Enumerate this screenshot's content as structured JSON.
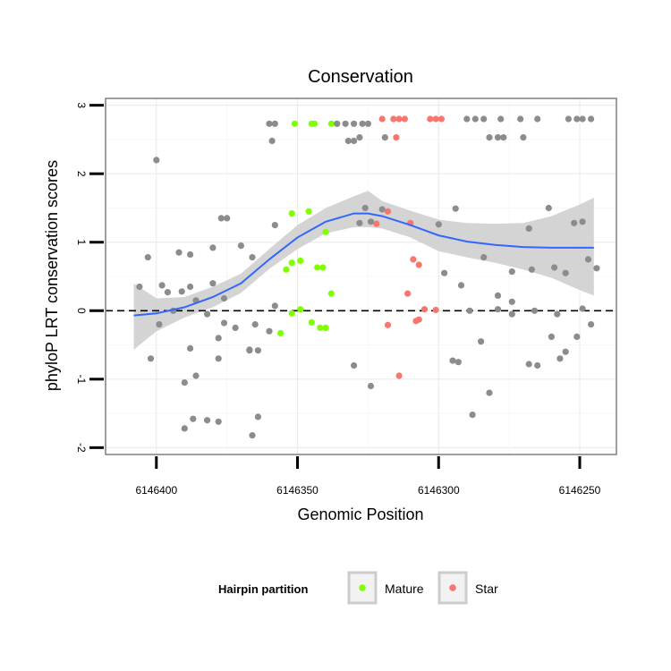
{
  "chart_data": {
    "type": "scatter",
    "title": "Conservation",
    "xlabel": "Genomic Position",
    "ylabel": "phyloP LRT conservation scores",
    "x_reversed": true,
    "xlim": [
      6146418,
      6146237
    ],
    "ylim": [
      -2.1,
      3.1
    ],
    "x_ticks": [
      6146400,
      6146350,
      6146300,
      6146250
    ],
    "x_tick_labels": [
      "6146400",
      "6146350",
      "6146300",
      "6146250"
    ],
    "y_ticks": [
      -2,
      -1,
      0,
      1,
      2,
      3
    ],
    "y_tick_labels": [
      "-2",
      "-1",
      "0",
      "1",
      "2",
      "3"
    ],
    "grid": true,
    "reference_line": {
      "y": 0,
      "style": "dashed",
      "color": "#000000"
    },
    "legend": {
      "title": "Hairpin partition",
      "position": "bottom",
      "entries": [
        {
          "label": "Mature",
          "color": "#7FFF00"
        },
        {
          "label": "Star",
          "color": "#F8766D"
        }
      ]
    },
    "other_color": "#8c8c8c",
    "smooth": {
      "color": "#3366FF",
      "band_color": "#cccccc",
      "x": [
        6146408,
        6146400,
        6146390,
        6146380,
        6146370,
        6146360,
        6146350,
        6146340,
        6146330,
        6146325,
        6146320,
        6146310,
        6146300,
        6146290,
        6146280,
        6146270,
        6146260,
        6146250,
        6146245
      ],
      "y": [
        -0.07,
        -0.04,
        0.05,
        0.2,
        0.4,
        0.75,
        1.07,
        1.3,
        1.42,
        1.42,
        1.38,
        1.25,
        1.1,
        1.01,
        0.96,
        0.93,
        0.92,
        0.92,
        0.92
      ],
      "lower": [
        -0.57,
        -0.3,
        -0.1,
        0.05,
        0.26,
        0.61,
        0.9,
        1.13,
        1.22,
        1.22,
        1.2,
        1.07,
        0.87,
        0.78,
        0.7,
        0.6,
        0.48,
        0.3,
        0.22
      ],
      "upper": [
        0.4,
        0.18,
        0.2,
        0.35,
        0.54,
        0.9,
        1.25,
        1.5,
        1.67,
        1.75,
        1.6,
        1.46,
        1.33,
        1.28,
        1.27,
        1.28,
        1.38,
        1.55,
        1.65
      ]
    },
    "series": [
      {
        "name": "Mature",
        "points": [
          [
            6146351,
            2.73
          ],
          [
            6146345,
            2.73
          ],
          [
            6146344,
            2.73
          ],
          [
            6146338,
            2.73
          ],
          [
            6146336,
            2.73
          ],
          [
            6146352,
            1.42
          ],
          [
            6146346,
            1.45
          ],
          [
            6146340,
            1.15
          ],
          [
            6146354,
            0.6
          ],
          [
            6146352,
            0.7
          ],
          [
            6146349,
            0.73
          ],
          [
            6146343,
            0.63
          ],
          [
            6146341,
            0.63
          ],
          [
            6146349,
            0.02
          ],
          [
            6146338,
            0.25
          ],
          [
            6146352,
            -0.04
          ],
          [
            6146345,
            -0.17
          ],
          [
            6146342,
            -0.25
          ],
          [
            6146340,
            -0.25
          ],
          [
            6146356,
            -0.33
          ]
        ]
      },
      {
        "name": "Star",
        "points": [
          [
            6146320,
            2.8
          ],
          [
            6146316,
            2.8
          ],
          [
            6146314,
            2.8
          ],
          [
            6146312,
            2.8
          ],
          [
            6146303,
            2.8
          ],
          [
            6146301,
            2.8
          ],
          [
            6146299,
            2.8
          ],
          [
            6146315,
            2.53
          ],
          [
            6146322,
            1.27
          ],
          [
            6146318,
            1.45
          ],
          [
            6146310,
            1.28
          ],
          [
            6146309,
            0.75
          ],
          [
            6146307,
            0.67
          ],
          [
            6146311,
            0.25
          ],
          [
            6146305,
            0.02
          ],
          [
            6146301,
            0.01
          ],
          [
            6146308,
            -0.15
          ],
          [
            6146307,
            -0.13
          ],
          [
            6146318,
            -0.21
          ],
          [
            6146314,
            -0.95
          ]
        ]
      },
      {
        "name": "Other",
        "points": [
          [
            6146360,
            2.73
          ],
          [
            6146358,
            2.73
          ],
          [
            6146336,
            2.73
          ],
          [
            6146333,
            2.73
          ],
          [
            6146330,
            2.73
          ],
          [
            6146327,
            2.73
          ],
          [
            6146325,
            2.73
          ],
          [
            6146359,
            2.48
          ],
          [
            6146332,
            2.48
          ],
          [
            6146330,
            2.48
          ],
          [
            6146328,
            2.53
          ],
          [
            6146319,
            2.53
          ],
          [
            6146400,
            2.2
          ],
          [
            6146377,
            1.35
          ],
          [
            6146375,
            1.35
          ],
          [
            6146370,
            0.95
          ],
          [
            6146380,
            0.92
          ],
          [
            6146358,
            1.25
          ],
          [
            6146328,
            1.28
          ],
          [
            6146324,
            1.3
          ],
          [
            6146326,
            1.5
          ],
          [
            6146320,
            1.48
          ],
          [
            6146300,
            1.26
          ],
          [
            6146294,
            1.49
          ],
          [
            6146392,
            0.85
          ],
          [
            6146388,
            0.82
          ],
          [
            6146403,
            0.78
          ],
          [
            6146366,
            0.78
          ],
          [
            6146380,
            0.4
          ],
          [
            6146388,
            0.35
          ],
          [
            6146396,
            0.27
          ],
          [
            6146391,
            0.28
          ],
          [
            6146406,
            0.35
          ],
          [
            6146398,
            0.37
          ],
          [
            6146386,
            0.15
          ],
          [
            6146376,
            0.18
          ],
          [
            6146358,
            0.07
          ],
          [
            6146394,
            0.0
          ],
          [
            6146382,
            -0.05
          ],
          [
            6146399,
            -0.2
          ],
          [
            6146376,
            -0.18
          ],
          [
            6146372,
            -0.25
          ],
          [
            6146365,
            -0.2
          ],
          [
            6146360,
            -0.3
          ],
          [
            6146378,
            -0.4
          ],
          [
            6146388,
            -0.55
          ],
          [
            6146378,
            -0.7
          ],
          [
            6146367,
            -0.57
          ],
          [
            6146367,
            -0.58
          ],
          [
            6146364,
            -0.58
          ],
          [
            6146402,
            -0.7
          ],
          [
            6146386,
            -0.95
          ],
          [
            6146390,
            -1.05
          ],
          [
            6146382,
            -1.6
          ],
          [
            6146378,
            -1.62
          ],
          [
            6146387,
            -1.58
          ],
          [
            6146364,
            -1.55
          ],
          [
            6146390,
            -1.72
          ],
          [
            6146366,
            -1.82
          ],
          [
            6146330,
            -0.8
          ],
          [
            6146324,
            -1.1
          ],
          [
            6146298,
            0.55
          ],
          [
            6146292,
            0.37
          ],
          [
            6146289,
            0.0
          ],
          [
            6146295,
            -0.73
          ],
          [
            6146293,
            -0.75
          ],
          [
            6146285,
            -0.45
          ],
          [
            6146288,
            -1.52
          ],
          [
            6146282,
            -1.2
          ],
          [
            6146282,
            2.53
          ],
          [
            6146279,
            2.53
          ],
          [
            6146277,
            2.53
          ],
          [
            6146270,
            2.53
          ],
          [
            6146290,
            2.8
          ],
          [
            6146287,
            2.8
          ],
          [
            6146284,
            2.8
          ],
          [
            6146278,
            2.8
          ],
          [
            6146271,
            2.8
          ],
          [
            6146265,
            2.8
          ],
          [
            6146254,
            2.8
          ],
          [
            6146251,
            2.8
          ],
          [
            6146249,
            2.8
          ],
          [
            6146246,
            2.8
          ],
          [
            6146261,
            1.5
          ],
          [
            6146252,
            1.28
          ],
          [
            6146249,
            1.3
          ],
          [
            6146284,
            0.78
          ],
          [
            6146274,
            0.57
          ],
          [
            6146267,
            0.6
          ],
          [
            6146268,
            1.2
          ],
          [
            6146279,
            0.22
          ],
          [
            6146279,
            0.02
          ],
          [
            6146274,
            0.13
          ],
          [
            6146274,
            -0.05
          ],
          [
            6146266,
            0.0
          ],
          [
            6146268,
            -0.78
          ],
          [
            6146265,
            -0.8
          ],
          [
            6146257,
            -0.7
          ],
          [
            6146255,
            -0.6
          ],
          [
            6146251,
            -0.38
          ],
          [
            6146258,
            -0.05
          ],
          [
            6146259,
            0.63
          ],
          [
            6146255,
            0.55
          ],
          [
            6146249,
            0.03
          ],
          [
            6146246,
            -0.2
          ],
          [
            6146247,
            0.75
          ],
          [
            6146244,
            0.62
          ],
          [
            6146260,
            -0.38
          ]
        ]
      }
    ]
  }
}
